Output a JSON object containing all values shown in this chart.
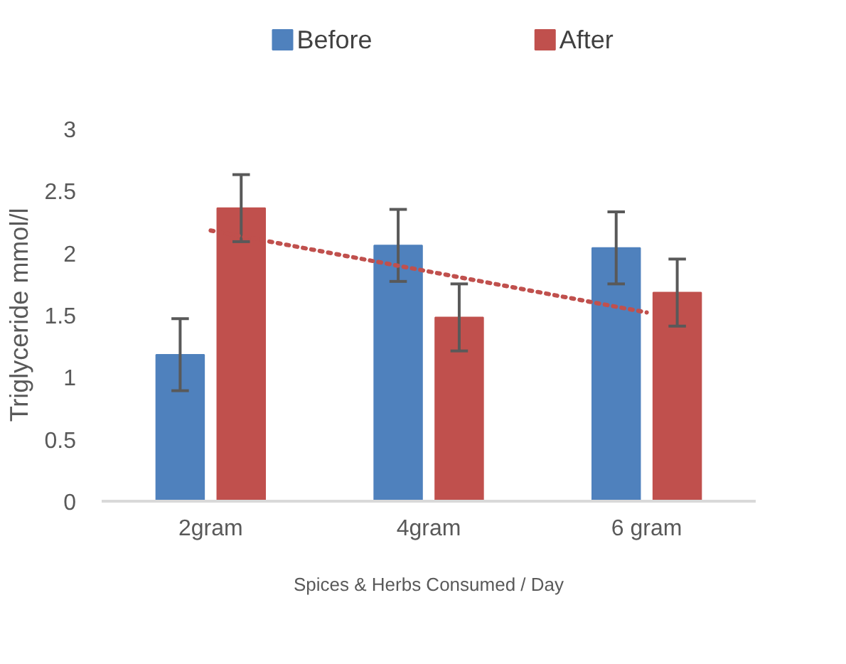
{
  "chart_data": {
    "type": "bar",
    "ylabel": "Triglyceride mmol/l",
    "xlabel": "Spices & Herbs Consumed / Day",
    "categories": [
      "2gram",
      "4gram",
      "6 gram"
    ],
    "series": [
      {
        "name": "Before",
        "color": "#4f81bd",
        "values": [
          1.18,
          2.06,
          2.04
        ],
        "errors": [
          0.29,
          0.29,
          0.29
        ]
      },
      {
        "name": "After",
        "color": "#c0504d",
        "values": [
          2.36,
          1.48,
          1.68
        ],
        "errors": [
          0.27,
          0.27,
          0.27
        ]
      },
      {
        "type": "line",
        "x": [
          "2gram",
          "6 gram"
        ],
        "values": [
          2.18,
          1.52
        ],
        "color": "#c0504d",
        "line_style": "dotted"
      }
    ],
    "ylim": [
      0,
      3
    ],
    "yticks": [
      0,
      0.5,
      1,
      1.5,
      2,
      2.5,
      3
    ],
    "legend": "top",
    "grid": false
  }
}
